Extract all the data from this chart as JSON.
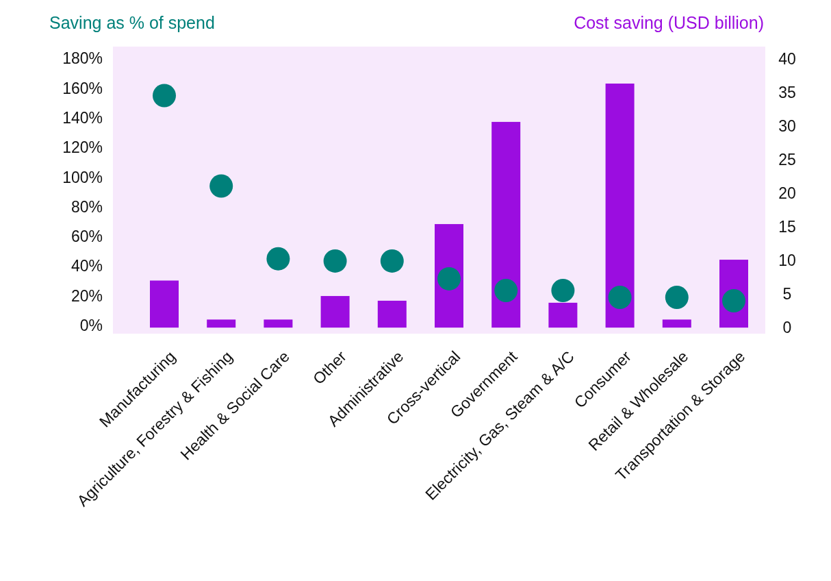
{
  "chart_data": {
    "type": "bar",
    "ylabel": "Saving as % of spend",
    "y2label": "Cost saving (USD billion)",
    "categories": [
      "Manufacturing",
      "Agriculture, Forestry & Fishing",
      "Health & Social Care",
      "Other",
      "Administrative",
      "Cross-vertical",
      "Government",
      "Electricity, Gas, Steam & A/C",
      "Consumer",
      "Retail & Wholesale",
      "Transportation & Storage"
    ],
    "series": [
      {
        "axis": "y2",
        "color": "#9b0de0",
        "values": [
          7.0,
          1.2,
          1.2,
          4.7,
          4.0,
          15.4,
          30.6,
          3.7,
          36.3,
          1.2,
          10.1
        ]
      },
      {
        "type": "scatter",
        "axis": "y",
        "color": "#00807a",
        "values": [
          155,
          94,
          45,
          43.5,
          43.5,
          31.5,
          23.6,
          23.6,
          19,
          19,
          16.7
        ]
      }
    ],
    "ylim": [
      -5.5,
      188
    ],
    "yticks": [
      {
        "value": 0,
        "label": "0%"
      },
      {
        "value": 20,
        "label": "20%"
      },
      {
        "value": 40,
        "label": "40%"
      },
      {
        "value": 60,
        "label": "60%"
      },
      {
        "value": 80,
        "label": "80%"
      },
      {
        "value": 100,
        "label": "100%"
      },
      {
        "value": 120,
        "label": "120%"
      },
      {
        "value": 140,
        "label": "140%"
      },
      {
        "value": 160,
        "label": "160%"
      },
      {
        "value": 180,
        "label": "180%"
      }
    ],
    "y2lim": [
      -0.9,
      41.8
    ],
    "y2ticks": [
      0,
      5,
      10,
      15,
      20,
      25,
      30,
      35,
      40
    ],
    "grid": false,
    "marker": "circle"
  }
}
